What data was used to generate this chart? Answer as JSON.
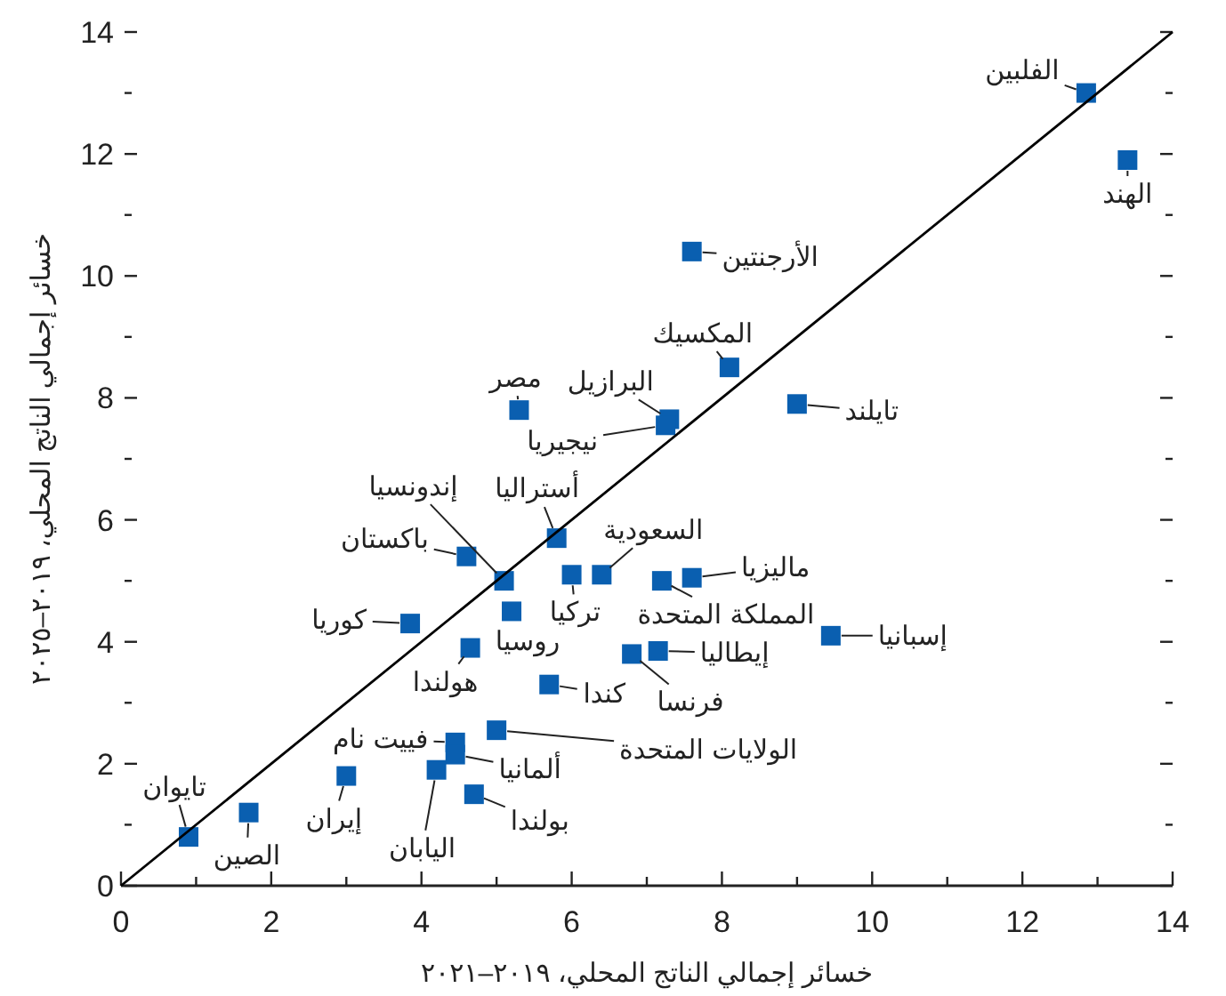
{
  "chart_data": {
    "type": "scatter",
    "xlabel": "خسائر إجمالي الناتج المحلي، ٢٠١٩–٢٠٢١",
    "ylabel": "خسائر إجمالي الناتج المحلي، ٢٠١٩–٢٠٢٥",
    "xlim": [
      0,
      14
    ],
    "ylim": [
      0,
      14
    ],
    "xticks": [
      0,
      {
        "value": 1,
        "label": null
      },
      2,
      {
        "value": 3,
        "label": null
      },
      4,
      {
        "value": 5,
        "label": null
      },
      6,
      {
        "value": 7,
        "label": null
      },
      8,
      {
        "value": 9,
        "label": null
      },
      10,
      {
        "value": 11,
        "label": null
      },
      12,
      {
        "value": 13,
        "label": null
      },
      14
    ],
    "yticks": [
      0,
      {
        "value": 1,
        "label": null
      },
      2,
      {
        "value": 3,
        "label": null
      },
      4,
      {
        "value": 5,
        "label": null
      },
      6,
      {
        "value": 7,
        "label": null
      },
      8,
      {
        "value": 9,
        "label": null
      },
      10,
      {
        "value": 11,
        "label": null
      },
      12,
      {
        "value": 13,
        "label": null
      },
      14
    ],
    "grid": false,
    "series": [
      {
        "marker": "square",
        "color": "#0a5fb0",
        "x": [
          12.85,
          13.4,
          7.6,
          8.1,
          9.0,
          7.3,
          7.25,
          5.3,
          5.8,
          5.1,
          4.6,
          6.4,
          6.0,
          7.2,
          7.6,
          3.85,
          5.2,
          4.65,
          9.45,
          7.15,
          6.8,
          5.7,
          5.0,
          4.45,
          4.45,
          4.2,
          3.0,
          4.7,
          1.7,
          0.9
        ],
        "values": [
          13.0,
          11.9,
          10.4,
          8.5,
          7.9,
          7.65,
          7.55,
          7.8,
          5.7,
          5.0,
          5.4,
          5.1,
          5.1,
          5.0,
          5.05,
          4.3,
          4.5,
          3.9,
          4.1,
          3.85,
          3.8,
          3.3,
          2.55,
          2.35,
          2.15,
          1.9,
          1.8,
          1.5,
          1.2,
          0.8
        ]
      },
      {
        "type": "line",
        "color": "#000000",
        "x": [
          0,
          14
        ],
        "values": [
          0,
          14
        ]
      }
    ],
    "annotations": [
      {
        "text": "الفلبين",
        "x": 12.85,
        "y": 13.0
      },
      {
        "text": "الهند",
        "x": 13.4,
        "y": 11.9
      },
      {
        "text": "الأرجنتين",
        "x": 7.6,
        "y": 10.4
      },
      {
        "text": "المكسيك",
        "x": 8.1,
        "y": 8.5
      },
      {
        "text": "تايلند",
        "x": 9.0,
        "y": 7.9
      },
      {
        "text": "البرازيل",
        "x": 7.3,
        "y": 7.65
      },
      {
        "text": "نيجيريا",
        "x": 7.25,
        "y": 7.55
      },
      {
        "text": "مصر",
        "x": 5.3,
        "y": 7.8
      },
      {
        "text": "أستراليا",
        "x": 5.8,
        "y": 5.7
      },
      {
        "text": "إندونسيا",
        "x": 5.1,
        "y": 5.0
      },
      {
        "text": "باكستان",
        "x": 4.6,
        "y": 5.4
      },
      {
        "text": "السعودية",
        "x": 6.4,
        "y": 5.1
      },
      {
        "text": "تركيا",
        "x": 6.0,
        "y": 5.1
      },
      {
        "text": "المملكة المتحدة",
        "x": 7.2,
        "y": 5.0
      },
      {
        "text": "ماليزيا",
        "x": 7.6,
        "y": 5.05
      },
      {
        "text": "كوريا",
        "x": 3.85,
        "y": 4.3
      },
      {
        "text": "روسيا",
        "x": 5.2,
        "y": 4.5
      },
      {
        "text": "هولندا",
        "x": 4.65,
        "y": 3.9
      },
      {
        "text": "إسبانيا",
        "x": 9.45,
        "y": 4.1
      },
      {
        "text": "إيطاليا",
        "x": 7.15,
        "y": 3.85
      },
      {
        "text": "فرنسا",
        "x": 6.8,
        "y": 3.8
      },
      {
        "text": "كندا",
        "x": 5.7,
        "y": 3.3
      },
      {
        "text": "الولايات المتحدة",
        "x": 5.0,
        "y": 2.55
      },
      {
        "text": "فييت نام",
        "x": 4.45,
        "y": 2.35
      },
      {
        "text": "ألمانيا",
        "x": 4.45,
        "y": 2.15
      },
      {
        "text": "اليابان",
        "x": 4.2,
        "y": 1.9
      },
      {
        "text": "إيران",
        "x": 3.0,
        "y": 1.8
      },
      {
        "text": "بولندا",
        "x": 4.7,
        "y": 1.5
      },
      {
        "text": "الصين",
        "x": 1.7,
        "y": 1.2
      },
      {
        "text": "تايوان",
        "x": 0.9,
        "y": 0.8
      }
    ]
  }
}
